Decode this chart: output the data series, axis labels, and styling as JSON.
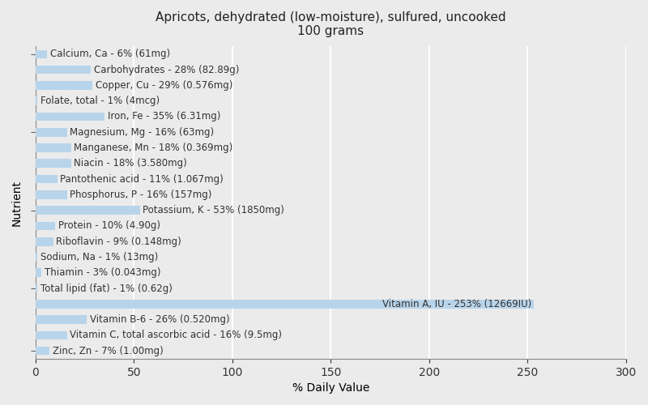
{
  "title_line1": "Apricots, dehydrated (low-moisture), sulfured, uncooked",
  "title_line2": "100 grams",
  "xlabel": "% Daily Value",
  "ylabel": "Nutrient",
  "nutrients": [
    "Calcium, Ca - 6% (61mg)",
    "Carbohydrates - 28% (82.89g)",
    "Copper, Cu - 29% (0.576mg)",
    "Folate, total - 1% (4mcg)",
    "Iron, Fe - 35% (6.31mg)",
    "Magnesium, Mg - 16% (63mg)",
    "Manganese, Mn - 18% (0.369mg)",
    "Niacin - 18% (3.580mg)",
    "Pantothenic acid - 11% (1.067mg)",
    "Phosphorus, P - 16% (157mg)",
    "Potassium, K - 53% (1850mg)",
    "Protein - 10% (4.90g)",
    "Riboflavin - 9% (0.148mg)",
    "Sodium, Na - 1% (13mg)",
    "Thiamin - 3% (0.043mg)",
    "Total lipid (fat) - 1% (0.62g)",
    "Vitamin A, IU - 253% (12669IU)",
    "Vitamin B-6 - 26% (0.520mg)",
    "Vitamin C, total ascorbic acid - 16% (9.5mg)",
    "Zinc, Zn - 7% (1.00mg)"
  ],
  "values": [
    6,
    28,
    29,
    1,
    35,
    16,
    18,
    18,
    11,
    16,
    53,
    10,
    9,
    1,
    3,
    1,
    253,
    26,
    16,
    7
  ],
  "bar_color": "#b8d4ea",
  "background_color": "#ebebeb",
  "plot_bg_color": "#ebebeb",
  "xlim": [
    0,
    300
  ],
  "xticks": [
    0,
    50,
    100,
    150,
    200,
    250,
    300
  ],
  "grid_color": "#ffffff",
  "label_fontsize": 8.5,
  "title_fontsize": 11,
  "bar_height": 0.55
}
